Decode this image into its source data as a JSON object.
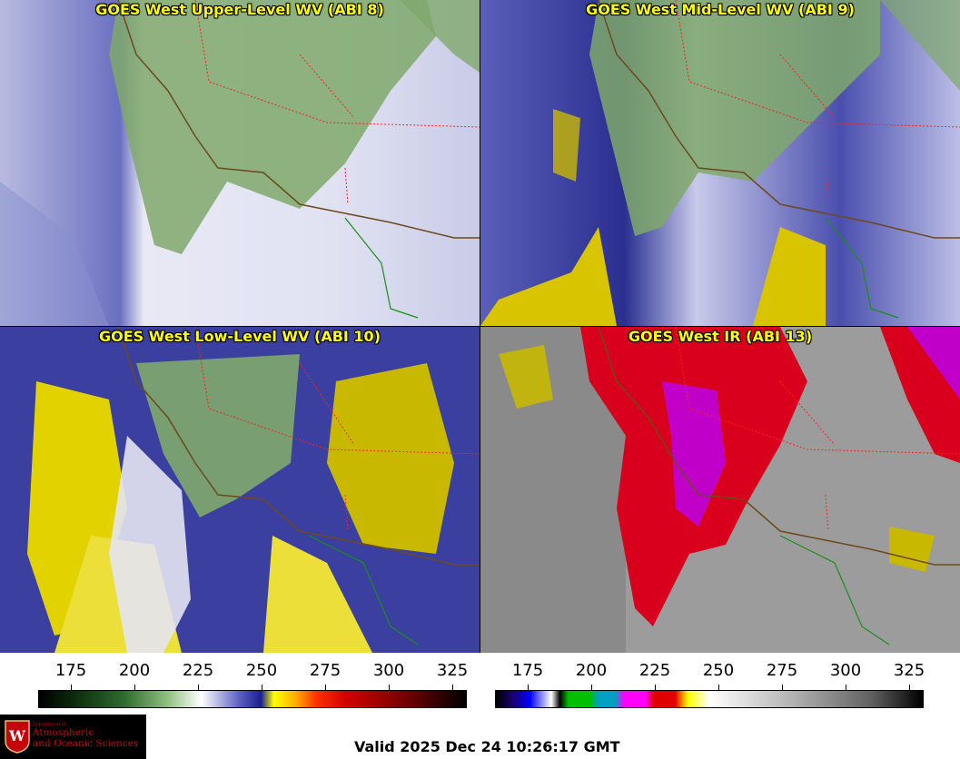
{
  "panels": [
    {
      "title": "GOES West Upper-Level WV (ABI 8)"
    },
    {
      "title": "GOES West Mid-Level WV (ABI 9)"
    },
    {
      "title": "GOES West Low-Level WV (ABI 10)"
    },
    {
      "title": "GOES West IR (ABI 13)"
    }
  ],
  "colorbars": [
    {
      "name": "water-vapor",
      "ticks": [
        "175",
        "200",
        "225",
        "250",
        "275",
        "300",
        "325"
      ]
    },
    {
      "name": "infrared",
      "ticks": [
        "175",
        "200",
        "225",
        "250",
        "275",
        "300",
        "325"
      ]
    }
  ],
  "logo": {
    "line1": "Department of",
    "line2": "Atmospheric",
    "line3": "and Oceanic Sciences",
    "seal_letter": "W"
  },
  "footer": {
    "valid": "Valid 2025 Dec 24 10:26:17 GMT"
  },
  "colors": {
    "title": "#ffff00",
    "borders_state": "#ff2020",
    "coast": "#6b4a1e",
    "mexico": "#1a8f1a"
  }
}
